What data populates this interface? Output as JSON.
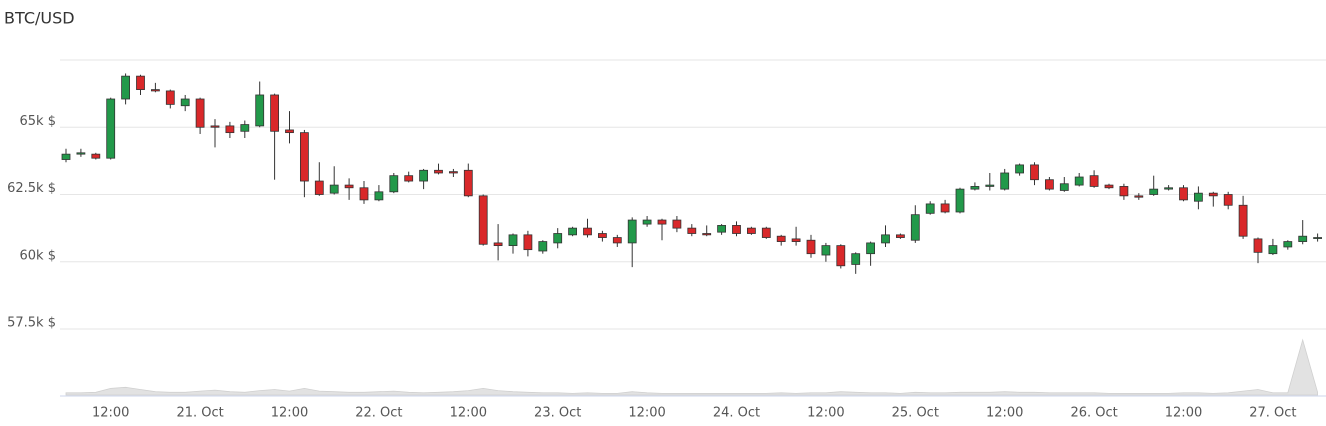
{
  "chart_data": {
    "type": "candlestick",
    "title": "BTC/USD",
    "categories": [
      null,
      null,
      null,
      "12:00",
      null,
      null,
      null,
      null,
      null,
      "21. Oct",
      null,
      null,
      null,
      null,
      null,
      "12:00",
      null,
      null,
      null,
      null,
      null,
      "22. Oct",
      null,
      null,
      null,
      null,
      null,
      "12:00",
      null,
      null,
      null,
      null,
      null,
      "23. Oct",
      null,
      null,
      null,
      null,
      null,
      "12:00",
      null,
      null,
      null,
      null,
      null,
      "24. Oct",
      null,
      null,
      null,
      null,
      null,
      "12:00",
      null,
      null,
      null,
      null,
      null,
      "25. Oct",
      null,
      null,
      null,
      null,
      null,
      "12:00",
      null,
      null,
      null,
      null,
      null,
      "26. Oct",
      null,
      null,
      null,
      null,
      null,
      "12:00",
      null,
      null,
      null,
      null,
      null,
      "27. Oct",
      null,
      null,
      null
    ],
    "open": [
      63800,
      64000,
      64000,
      63850,
      66050,
      66900,
      66400,
      66350,
      65800,
      66050,
      65050,
      65050,
      64850,
      65050,
      66200,
      64900,
      64800,
      63000,
      62550,
      62850,
      62750,
      62300,
      62600,
      63200,
      63000,
      63400,
      63350,
      63400,
      62450,
      60700,
      60600,
      61000,
      60400,
      60700,
      61000,
      61250,
      61050,
      60900,
      60700,
      61400,
      61550,
      61550,
      61250,
      61050,
      61100,
      61350,
      61250,
      61250,
      60950,
      60850,
      60800,
      60250,
      60600,
      59900,
      60300,
      60700,
      61000,
      60800,
      61800,
      62150,
      61850,
      62700,
      62800,
      62700,
      63300,
      63600,
      63050,
      62650,
      62850,
      63200,
      62850,
      62800,
      62450,
      62500,
      62700,
      62750,
      62250,
      62550,
      62500,
      62100,
      60850,
      60300,
      60550,
      60750,
      60900
    ],
    "high": [
      64200,
      64200,
      64050,
      66100,
      67000,
      66950,
      66650,
      66400,
      66200,
      66100,
      65300,
      65200,
      65250,
      66700,
      66250,
      65600,
      64900,
      63700,
      63550,
      63100,
      63000,
      62850,
      63300,
      63350,
      63450,
      63650,
      63450,
      63650,
      62500,
      61400,
      61050,
      61150,
      60800,
      61250,
      61300,
      61600,
      61150,
      61000,
      61650,
      61700,
      61600,
      61700,
      61400,
      61350,
      61400,
      61500,
      61300,
      61300,
      61000,
      61300,
      61000,
      60700,
      60650,
      60350,
      60750,
      61350,
      61050,
      62100,
      62250,
      62300,
      62750,
      62950,
      63300,
      63450,
      63650,
      63700,
      63150,
      63150,
      63300,
      63400,
      62900,
      62900,
      62550,
      63200,
      62850,
      62850,
      62800,
      62600,
      62600,
      62450,
      60900,
      60850,
      60800,
      61550,
      61050
    ],
    "low": [
      63700,
      63900,
      63800,
      63800,
      65850,
      66200,
      66300,
      65700,
      65600,
      64750,
      64250,
      64600,
      64600,
      65000,
      63050,
      64400,
      62400,
      62450,
      62500,
      62300,
      62150,
      62250,
      62550,
      62950,
      62700,
      63250,
      63150,
      62400,
      60600,
      60050,
      60300,
      60200,
      60300,
      60500,
      60950,
      60900,
      60750,
      60550,
      59800,
      61300,
      60800,
      61100,
      60950,
      60950,
      61000,
      60950,
      61000,
      60850,
      60600,
      60600,
      60150,
      60000,
      59750,
      59550,
      59850,
      60550,
      60850,
      60700,
      61750,
      61800,
      61800,
      62650,
      62650,
      62650,
      63200,
      62850,
      62650,
      62600,
      62800,
      62750,
      62700,
      62300,
      62300,
      62450,
      62650,
      62250,
      61950,
      62050,
      61950,
      60850,
      59950,
      60250,
      60450,
      60650,
      60750
    ],
    "close": [
      64000,
      64050,
      63850,
      66050,
      66900,
      66400,
      66350,
      65850,
      66050,
      65000,
      65000,
      64800,
      65100,
      66200,
      64850,
      64800,
      63000,
      62500,
      62850,
      62750,
      62300,
      62600,
      63200,
      63000,
      63400,
      63300,
      63300,
      62450,
      60650,
      60600,
      61000,
      60450,
      60750,
      61050,
      61250,
      61000,
      60900,
      60700,
      61550,
      61550,
      61400,
      61250,
      61050,
      61000,
      61350,
      61050,
      61050,
      60900,
      60750,
      60750,
      60300,
      60600,
      59850,
      60300,
      60700,
      61000,
      60900,
      61750,
      62150,
      61850,
      62700,
      62800,
      62850,
      63300,
      63600,
      63050,
      62700,
      62900,
      63150,
      62800,
      62750,
      62450,
      62400,
      62700,
      62750,
      62300,
      62550,
      62450,
      62100,
      60950,
      60350,
      60600,
      60750,
      60950,
      60900
    ],
    "up_color": "#22994a",
    "down_color": "#d9282a",
    "wick_color": "#333333",
    "ylim": [
      57500,
      67500
    ],
    "yticks": [
      {
        "value": 57500,
        "label": "57.5k $"
      },
      {
        "value": 60000,
        "label": "60k $"
      },
      {
        "value": 62500,
        "label": "62.5k $"
      },
      {
        "value": 65000,
        "label": "65k $"
      },
      67500
    ],
    "grid": true,
    "volume": {
      "color": "#e2e2e2",
      "ylim": [
        0,
        100
      ],
      "values": [
        4,
        4,
        5,
        12,
        14,
        10,
        6,
        5,
        5,
        7,
        9,
        6,
        5,
        8,
        10,
        7,
        12,
        7,
        6,
        5,
        5,
        6,
        7,
        5,
        4,
        5,
        6,
        8,
        12,
        8,
        6,
        5,
        4,
        4,
        3,
        4,
        3,
        3,
        6,
        4,
        3,
        3,
        3,
        3,
        3,
        3,
        3,
        3,
        4,
        3,
        4,
        4,
        6,
        5,
        4,
        4,
        3,
        5,
        4,
        4,
        5,
        5,
        5,
        6,
        5,
        5,
        4,
        4,
        4,
        4,
        3,
        3,
        3,
        3,
        3,
        4,
        4,
        3,
        4,
        7,
        10,
        4,
        4,
        100,
        5
      ]
    }
  }
}
